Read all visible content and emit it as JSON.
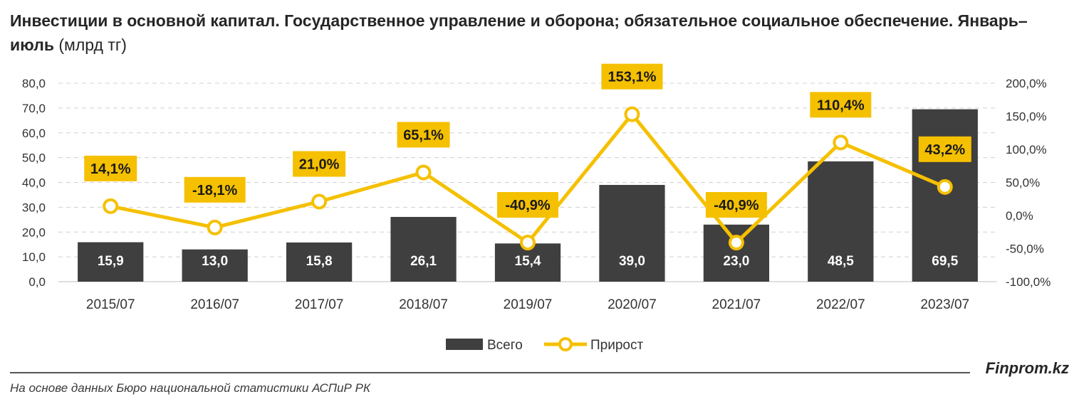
{
  "title": {
    "bold": "Инвестиции в основной капитал. Государственное управление и оборона; обязательное социальное обеспечение. Январь–июль",
    "unit": " (млрд тг)"
  },
  "footer": {
    "brand": "Finprom.kz",
    "source": "На основе данных Бюро национальной статистики АСПиР РК"
  },
  "chart_data": {
    "type": "bar",
    "categories": [
      "2015/07",
      "2016/07",
      "2017/07",
      "2018/07",
      "2019/07",
      "2020/07",
      "2021/07",
      "2022/07",
      "2023/07"
    ],
    "series": [
      {
        "name": "Всего",
        "type": "bar",
        "axis": "left",
        "values": [
          15.9,
          13.0,
          15.8,
          26.1,
          15.4,
          39.0,
          23.0,
          48.5,
          69.5
        ],
        "labels": [
          "15,9",
          "13,0",
          "15,8",
          "26,1",
          "15,4",
          "39,0",
          "23,0",
          "48,5",
          "69,5"
        ]
      },
      {
        "name": "Прирост",
        "type": "line",
        "axis": "right",
        "values": [
          14.1,
          -18.1,
          21.0,
          65.1,
          -40.9,
          153.1,
          -40.9,
          110.4,
          43.2
        ],
        "labels": [
          "14,1%",
          "-18,1%",
          "21,0%",
          "65,1%",
          "-40,9%",
          "153,1%",
          "-40,9%",
          "110,4%",
          "43,2%"
        ]
      }
    ],
    "ylim": [
      0,
      80
    ],
    "yticks": [
      "0,0",
      "10,0",
      "20,0",
      "30,0",
      "40,0",
      "50,0",
      "60,0",
      "70,0",
      "80,0"
    ],
    "y2lim": [
      -100,
      200
    ],
    "y2ticks": [
      "-100,0%",
      "-50,0%",
      "0,0%",
      "50,0%",
      "100,0%",
      "150,0%",
      "200,0%"
    ],
    "grid": true,
    "legend": "bottom",
    "colors": {
      "bar": "#3f3f3f",
      "line": "#f5c000",
      "marker_fill": "#ffffff",
      "label_bg": "#f5c000",
      "bar_label": "#ffffff"
    }
  }
}
